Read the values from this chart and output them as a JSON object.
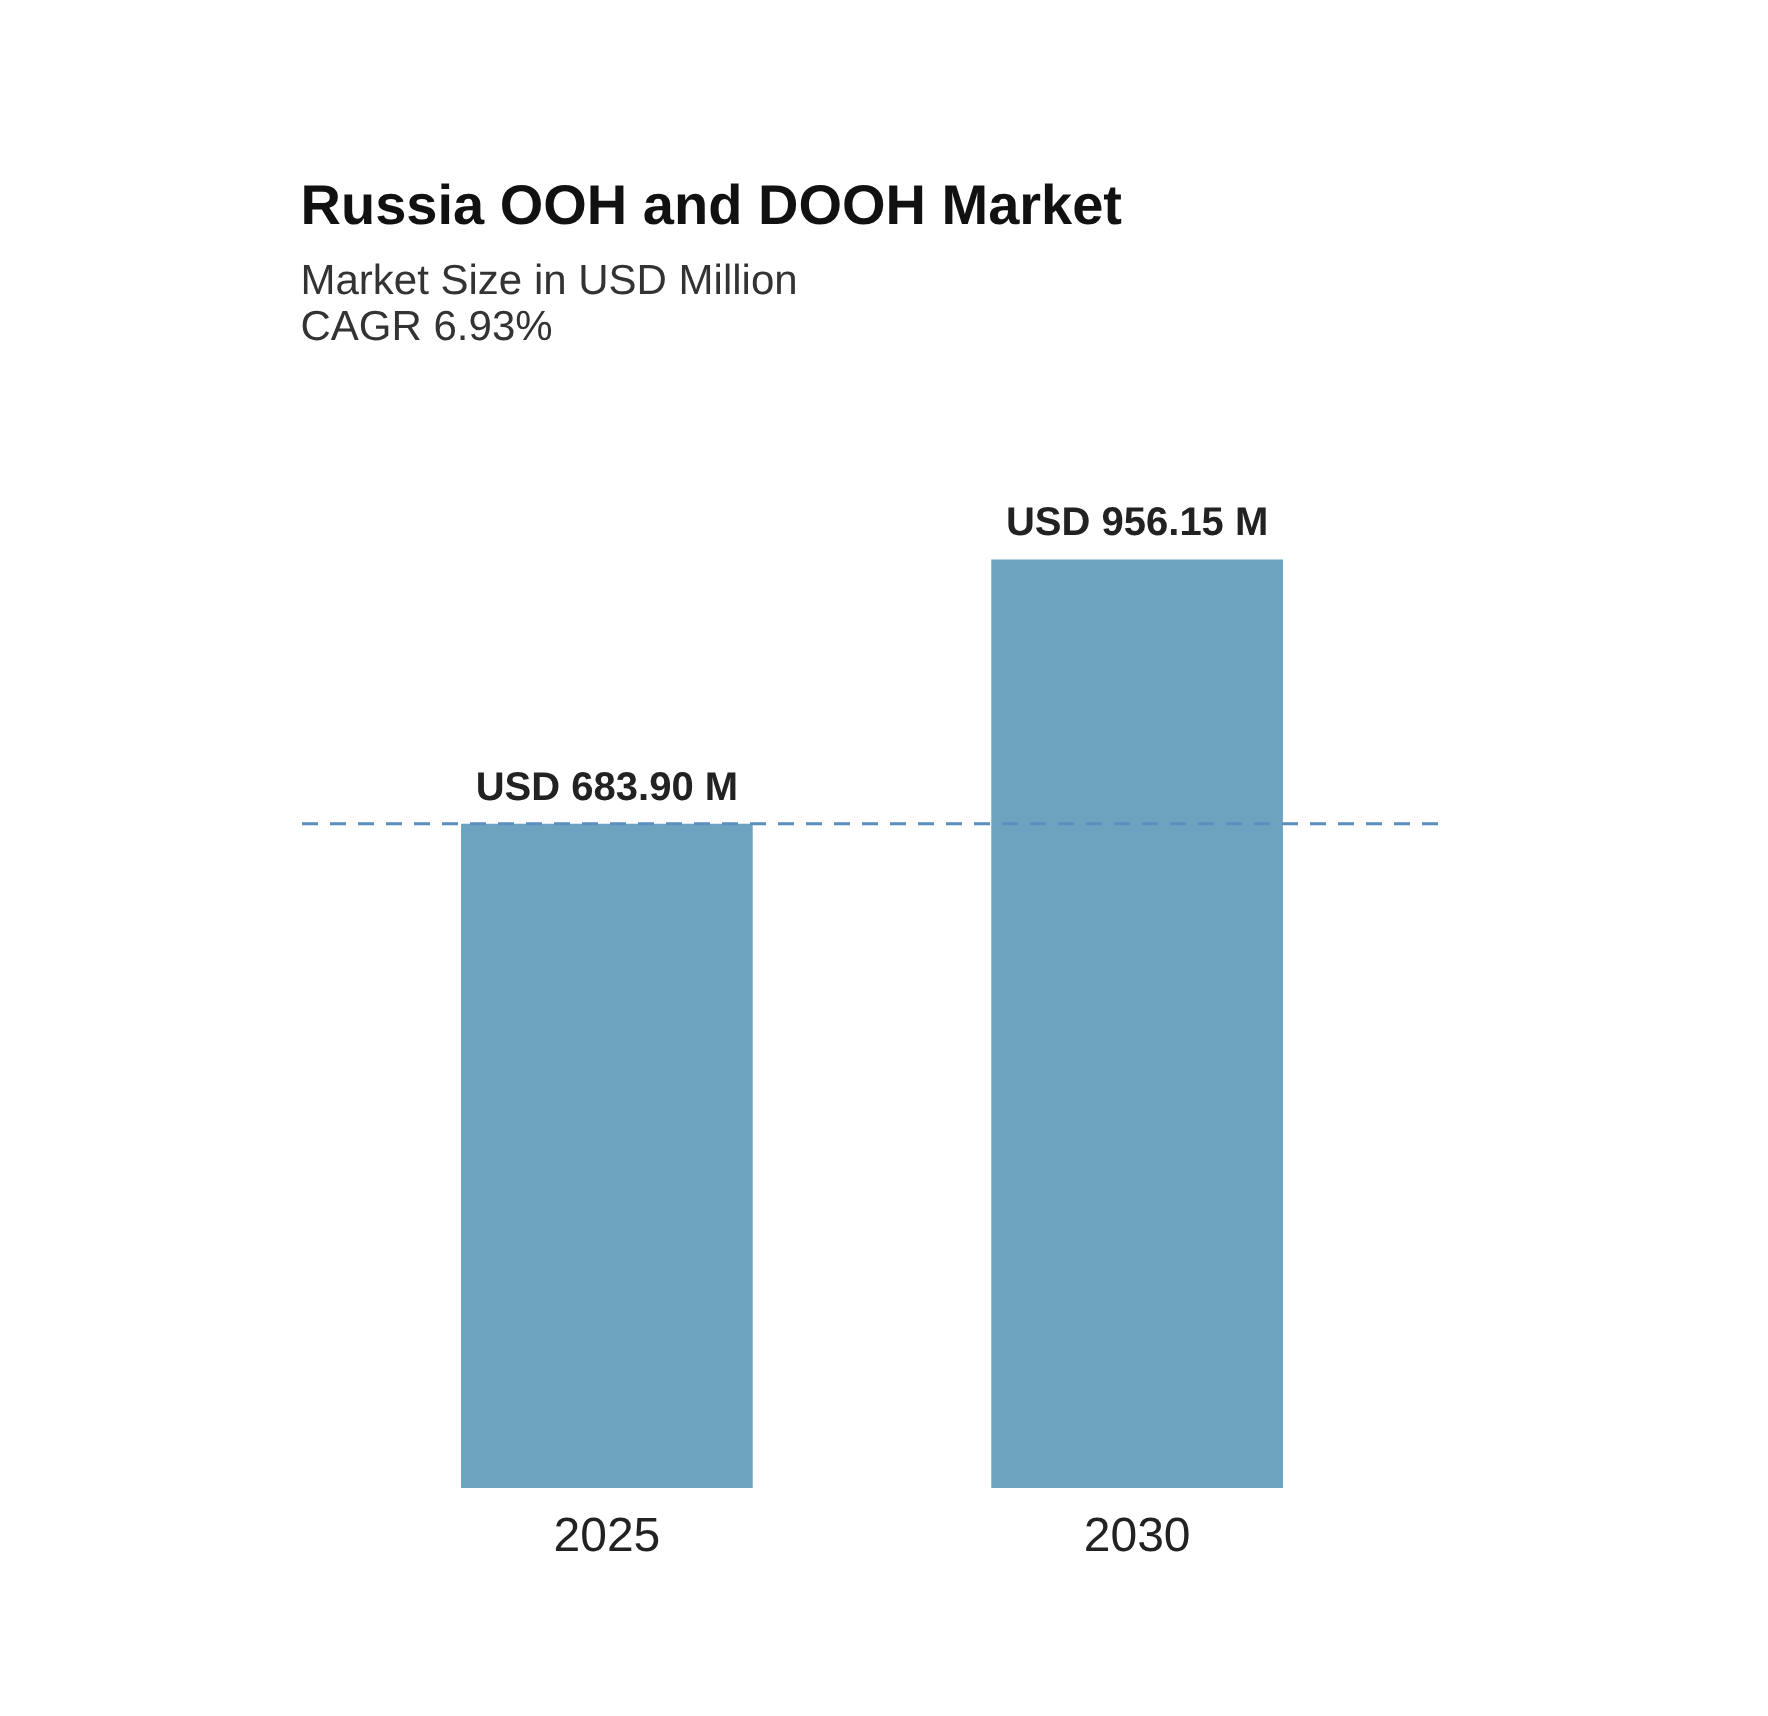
{
  "chart_data": {
    "type": "bar",
    "title": "Russia OOH and DOOH Market",
    "subtitle": "Market Size in USD Million",
    "annotations": [
      "CAGR 6.93%"
    ],
    "categories": [
      "2025",
      "2030"
    ],
    "values": [
      683.9,
      956.15
    ],
    "color": "#6da3bf",
    "value_labels": [
      "USD 683.90 M",
      "USD 956.15 M"
    ],
    "ref_lines": [
      {
        "axis": "y",
        "value": 683.9,
        "color": "#5b8fbf",
        "line_style": "dashed"
      }
    ]
  }
}
